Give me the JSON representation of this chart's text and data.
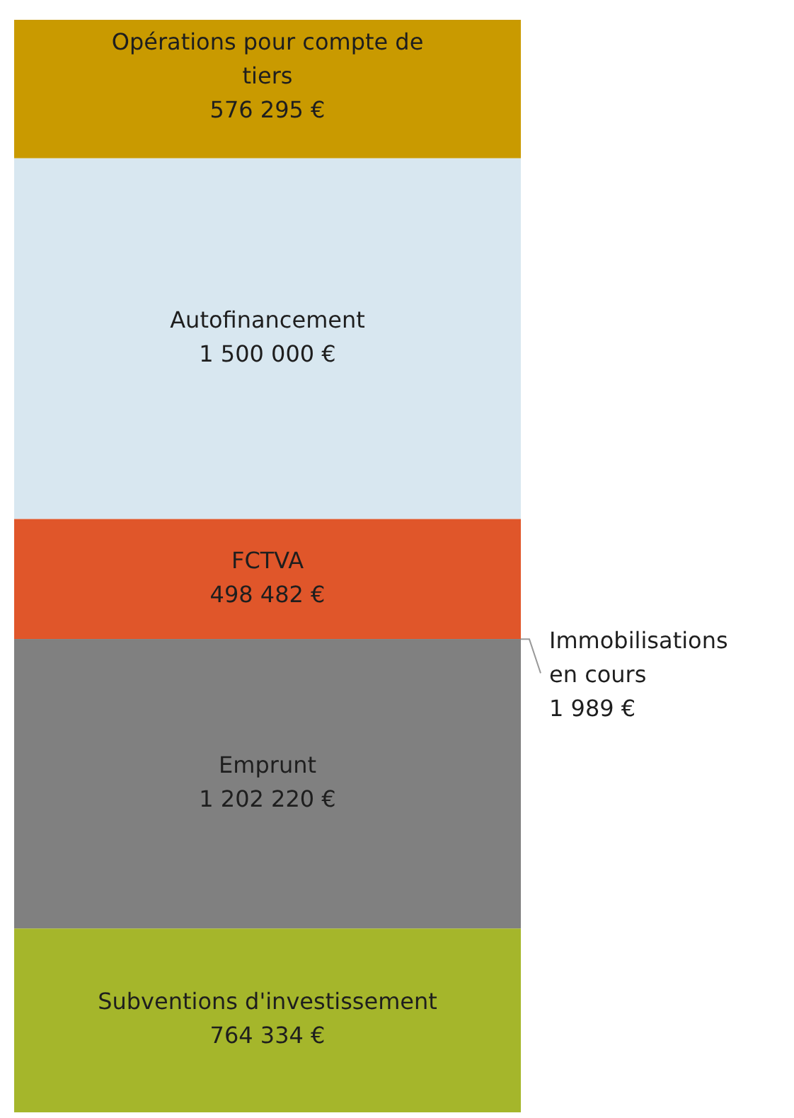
{
  "chart_data": {
    "type": "bar",
    "stacked": true,
    "legend": false,
    "tick_labels": false,
    "categories": [
      null
    ],
    "series": [
      {
        "name": "Subventions d'investissement",
        "color": "#a5b62b",
        "values": [
          764334
        ],
        "value_labels": [
          "764 334 €"
        ]
      },
      {
        "name": "Emprunt",
        "color": "#808080",
        "values": [
          1202220
        ],
        "value_labels": [
          "1 202 220 €"
        ]
      },
      {
        "name": "Immobilisations en cours",
        "color": "#5f5f5f",
        "values": [
          1989
        ],
        "value_labels": [
          "1 989 €"
        ]
      },
      {
        "name": "FCTVA",
        "color": "#e0562a",
        "values": [
          498482
        ],
        "value_labels": [
          "498 482 €"
        ]
      },
      {
        "name": "Autofinancement",
        "color": "#d8e7f0",
        "values": [
          1500000
        ],
        "value_labels": [
          "1 500 000 €"
        ]
      },
      {
        "name": "Opérations pour compte de tiers",
        "color": "#c99a00",
        "values": [
          576295
        ],
        "value_labels": [
          "576 295 €"
        ]
      }
    ]
  }
}
